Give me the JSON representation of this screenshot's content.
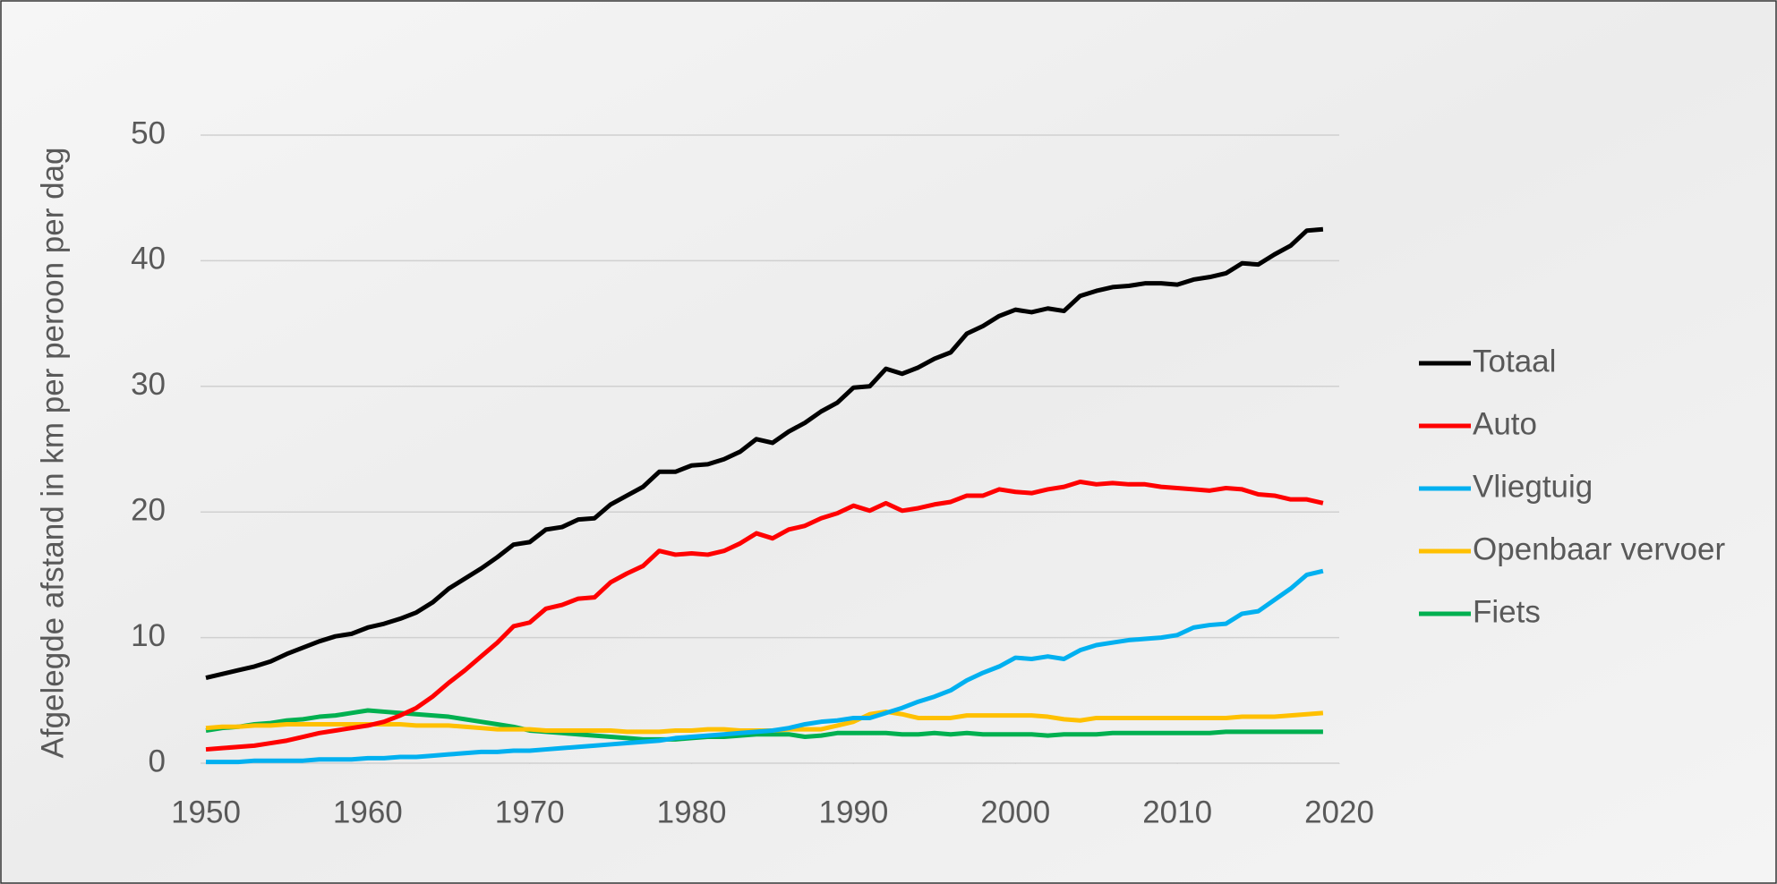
{
  "chart_data": {
    "type": "line",
    "ylabel": "Afgelegde afstand in km per peroon per dag",
    "x": [
      1950,
      1951,
      1952,
      1953,
      1954,
      1955,
      1956,
      1957,
      1958,
      1959,
      1960,
      1961,
      1962,
      1963,
      1964,
      1965,
      1966,
      1967,
      1968,
      1969,
      1970,
      1971,
      1972,
      1973,
      1974,
      1975,
      1976,
      1977,
      1978,
      1979,
      1980,
      1981,
      1982,
      1983,
      1984,
      1985,
      1986,
      1987,
      1988,
      1989,
      1990,
      1991,
      1992,
      1993,
      1994,
      1995,
      1996,
      1997,
      1998,
      1999,
      2000,
      2001,
      2002,
      2003,
      2004,
      2005,
      2006,
      2007,
      2008,
      2009,
      2010,
      2011,
      2012,
      2013,
      2014,
      2015,
      2016,
      2017,
      2018,
      2019
    ],
    "series": [
      {
        "name": "Totaal",
        "color": "#000000",
        "values": [
          6.8,
          7.1,
          7.4,
          7.7,
          8.1,
          8.7,
          9.2,
          9.7,
          10.1,
          10.3,
          10.8,
          11.1,
          11.5,
          12.0,
          12.8,
          13.9,
          14.7,
          15.5,
          16.4,
          17.4,
          17.6,
          18.6,
          18.8,
          19.4,
          19.5,
          20.6,
          21.3,
          22.0,
          23.2,
          23.2,
          23.7,
          23.8,
          24.2,
          24.8,
          25.8,
          25.5,
          26.4,
          27.1,
          28.0,
          28.7,
          29.9,
          30.0,
          31.4,
          31.0,
          31.5,
          32.2,
          32.7,
          34.2,
          34.8,
          35.6,
          36.1,
          35.9,
          36.2,
          36.0,
          37.2,
          37.6,
          37.9,
          38.0,
          38.2,
          38.2,
          38.1,
          38.5,
          38.7,
          39.0,
          39.8,
          39.7,
          40.5,
          41.2,
          42.4,
          42.5
        ]
      },
      {
        "name": "Auto",
        "color": "#ff0000",
        "values": [
          1.1,
          1.2,
          1.3,
          1.4,
          1.6,
          1.8,
          2.1,
          2.4,
          2.6,
          2.8,
          3.0,
          3.3,
          3.8,
          4.4,
          5.3,
          6.4,
          7.4,
          8.5,
          9.6,
          10.9,
          11.2,
          12.3,
          12.6,
          13.1,
          13.2,
          14.4,
          15.1,
          15.7,
          16.9,
          16.6,
          16.7,
          16.6,
          16.9,
          17.5,
          18.3,
          17.9,
          18.6,
          18.9,
          19.5,
          19.9,
          20.5,
          20.1,
          20.7,
          20.1,
          20.3,
          20.6,
          20.8,
          21.3,
          21.3,
          21.8,
          21.6,
          21.5,
          21.8,
          22.0,
          22.4,
          22.2,
          22.3,
          22.2,
          22.2,
          22.0,
          21.9,
          21.8,
          21.7,
          21.9,
          21.8,
          21.4,
          21.3,
          21.0,
          21.0,
          20.7
        ]
      },
      {
        "name": "Vliegtuig",
        "color": "#00b0f0",
        "values": [
          0.1,
          0.1,
          0.1,
          0.2,
          0.2,
          0.2,
          0.2,
          0.3,
          0.3,
          0.3,
          0.4,
          0.4,
          0.5,
          0.5,
          0.6,
          0.7,
          0.8,
          0.9,
          0.9,
          1.0,
          1.0,
          1.1,
          1.2,
          1.3,
          1.4,
          1.5,
          1.6,
          1.7,
          1.8,
          2.0,
          2.1,
          2.2,
          2.3,
          2.4,
          2.5,
          2.6,
          2.8,
          3.1,
          3.3,
          3.4,
          3.6,
          3.6,
          4.0,
          4.4,
          4.9,
          5.3,
          5.8,
          6.6,
          7.2,
          7.7,
          8.4,
          8.3,
          8.5,
          8.3,
          9.0,
          9.4,
          9.6,
          9.8,
          9.9,
          10.0,
          10.2,
          10.8,
          11.0,
          11.1,
          11.9,
          12.1,
          13.0,
          13.9,
          15.0,
          15.3
        ]
      },
      {
        "name": "Openbaar vervoer",
        "color": "#ffc000",
        "values": [
          2.8,
          2.9,
          2.9,
          3.0,
          3.0,
          3.1,
          3.1,
          3.1,
          3.1,
          3.1,
          3.1,
          3.1,
          3.1,
          3.0,
          3.0,
          3.0,
          2.9,
          2.8,
          2.7,
          2.7,
          2.7,
          2.6,
          2.6,
          2.6,
          2.6,
          2.6,
          2.5,
          2.5,
          2.5,
          2.6,
          2.6,
          2.7,
          2.7,
          2.6,
          2.6,
          2.6,
          2.7,
          2.7,
          2.7,
          3.0,
          3.3,
          3.9,
          4.1,
          3.9,
          3.6,
          3.6,
          3.6,
          3.8,
          3.8,
          3.8,
          3.8,
          3.8,
          3.7,
          3.5,
          3.4,
          3.6,
          3.6,
          3.6,
          3.6,
          3.6,
          3.6,
          3.6,
          3.6,
          3.6,
          3.7,
          3.7,
          3.7,
          3.8,
          3.9,
          4.0
        ]
      },
      {
        "name": "Fiets",
        "color": "#00b050",
        "values": [
          2.6,
          2.8,
          2.9,
          3.1,
          3.2,
          3.4,
          3.5,
          3.7,
          3.8,
          4.0,
          4.2,
          4.1,
          4.0,
          3.9,
          3.8,
          3.7,
          3.5,
          3.3,
          3.1,
          2.9,
          2.6,
          2.5,
          2.4,
          2.3,
          2.2,
          2.1,
          2.0,
          1.9,
          1.9,
          1.9,
          2.0,
          2.1,
          2.1,
          2.2,
          2.3,
          2.3,
          2.3,
          2.1,
          2.2,
          2.4,
          2.4,
          2.4,
          2.4,
          2.3,
          2.3,
          2.4,
          2.3,
          2.4,
          2.3,
          2.3,
          2.3,
          2.3,
          2.2,
          2.3,
          2.3,
          2.3,
          2.4,
          2.4,
          2.4,
          2.4,
          2.4,
          2.4,
          2.4,
          2.5,
          2.5,
          2.5,
          2.5,
          2.5,
          2.5,
          2.5
        ]
      }
    ],
    "xlim": [
      1950,
      2020
    ],
    "xticks": [
      1950,
      1960,
      1970,
      1980,
      1990,
      2000,
      2010,
      2020
    ],
    "ylim": [
      0,
      50
    ],
    "yticks": [
      0,
      10,
      20,
      30,
      40,
      50
    ],
    "grid": true,
    "legend": "right"
  }
}
